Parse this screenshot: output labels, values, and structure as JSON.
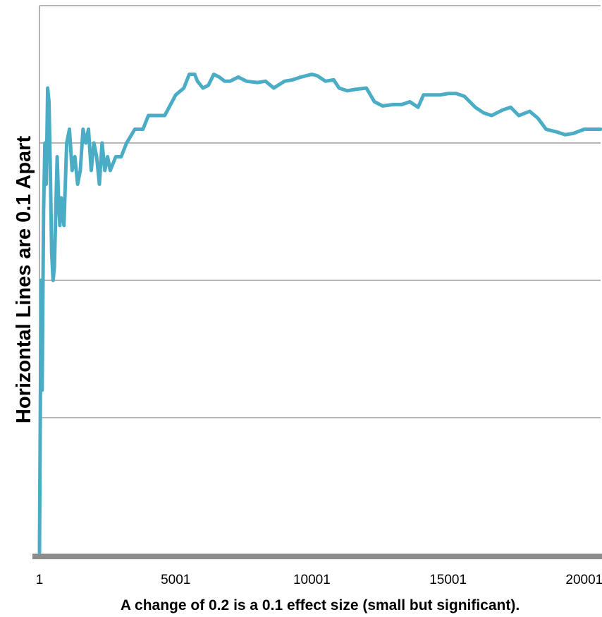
{
  "chart_data": {
    "type": "line",
    "xlabel": "A change of 0.2 is a 0.1 effect size (small but significant).",
    "ylabel": "Horizontal Lines are 0.1 Apart",
    "x_ticks": [
      1,
      5001,
      10001,
      15001,
      20001
    ],
    "x_tick_labels": [
      "1",
      "5001",
      "10001",
      "15001",
      "20001"
    ],
    "xlim": [
      1,
      20601
    ],
    "ylim": [
      0,
      0.4
    ],
    "y_gridlines": [
      0.1,
      0.2,
      0.3,
      0.4
    ],
    "y_tick_labels_shown": false,
    "grid": "horizontal",
    "legend": "none",
    "line_color": "#4bacc6",
    "series": [
      {
        "x": [
          1,
          60,
          100,
          150,
          200,
          250,
          300,
          350,
          400,
          450,
          500,
          550,
          600,
          650,
          700,
          750,
          800,
          900,
          1000,
          1100,
          1200,
          1300,
          1400,
          1500,
          1600,
          1700,
          1800,
          1900,
          2000,
          2100,
          2200,
          2300,
          2400,
          2500,
          2600,
          2800,
          3000,
          3200,
          3500,
          3800,
          4000,
          4300,
          4600,
          5000,
          5300,
          5500,
          5700,
          5800,
          6000,
          6200,
          6400,
          6600,
          6800,
          7000,
          7300,
          7600,
          8000,
          8300,
          8600,
          9000,
          9300,
          9600,
          10000,
          10200,
          10500,
          10800,
          11000,
          11300,
          11600,
          12000,
          12300,
          12600,
          13000,
          13300,
          13600,
          13900,
          14100,
          14400,
          14700,
          15000,
          15300,
          15600,
          16000,
          16300,
          16600,
          17000,
          17300,
          17600,
          18000,
          18300,
          18600,
          19000,
          19300,
          19600,
          20000,
          20300,
          20600
        ],
        "y": [
          0.002,
          0.2,
          0.12,
          0.25,
          0.3,
          0.27,
          0.34,
          0.33,
          0.28,
          0.22,
          0.2,
          0.21,
          0.25,
          0.29,
          0.26,
          0.24,
          0.26,
          0.24,
          0.3,
          0.31,
          0.28,
          0.29,
          0.27,
          0.28,
          0.31,
          0.3,
          0.31,
          0.28,
          0.3,
          0.29,
          0.27,
          0.3,
          0.28,
          0.29,
          0.28,
          0.29,
          0.29,
          0.3,
          0.31,
          0.31,
          0.32,
          0.32,
          0.32,
          0.335,
          0.34,
          0.35,
          0.35,
          0.345,
          0.34,
          0.342,
          0.35,
          0.348,
          0.345,
          0.345,
          0.348,
          0.345,
          0.344,
          0.345,
          0.34,
          0.345,
          0.346,
          0.348,
          0.35,
          0.349,
          0.345,
          0.346,
          0.34,
          0.338,
          0.339,
          0.34,
          0.33,
          0.327,
          0.328,
          0.328,
          0.33,
          0.326,
          0.335,
          0.335,
          0.335,
          0.336,
          0.336,
          0.334,
          0.326,
          0.322,
          0.32,
          0.324,
          0.326,
          0.32,
          0.323,
          0.318,
          0.31,
          0.308,
          0.306,
          0.307,
          0.31,
          0.31,
          0.31
        ]
      }
    ]
  }
}
